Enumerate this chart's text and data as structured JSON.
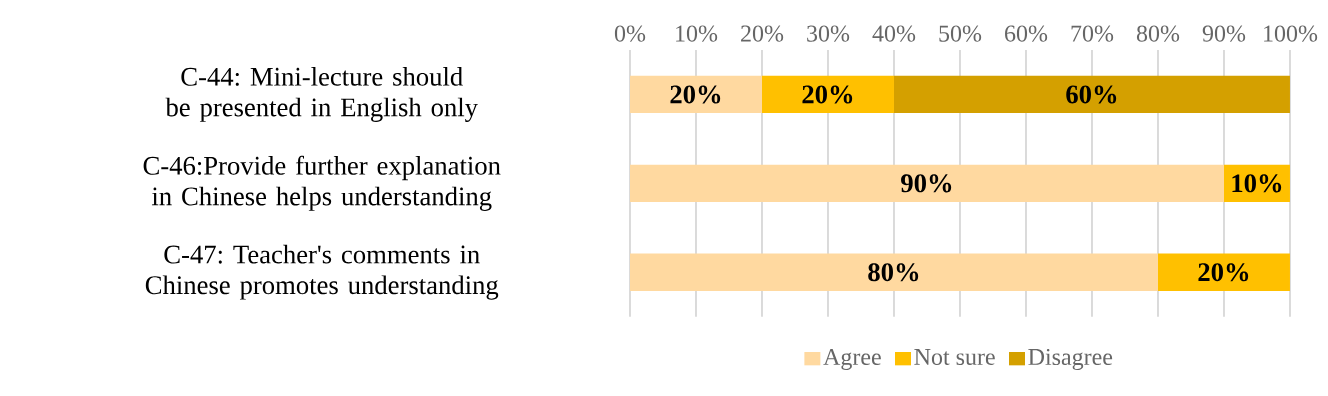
{
  "chart_data": {
    "type": "bar",
    "orientation": "horizontal",
    "stacked": true,
    "categories": [
      "C-44: Mini-lecture should be presented in English only",
      "C-46:Provide further explanation in Chinese helps understanding",
      "C-47: Teacher's comments in Chinese promotes understanding"
    ],
    "series": [
      {
        "name": "Agree",
        "color": "#ffd9a0",
        "values": [
          20,
          90,
          80
        ],
        "value_labels": [
          "20%",
          "90%",
          "80%"
        ]
      },
      {
        "name": "Not sure",
        "color": "#ffc000",
        "values": [
          20,
          10,
          20
        ],
        "value_labels": [
          "20%",
          "10%",
          "20%"
        ]
      },
      {
        "name": "Disagree",
        "color": "#d4a000",
        "values": [
          60,
          0,
          0
        ],
        "value_labels": [
          "60%",
          null,
          null
        ]
      }
    ],
    "xlim": [
      0,
      100
    ],
    "xticks": [
      {
        "value": 0,
        "label": "0%"
      },
      {
        "value": 10,
        "label": "10%"
      },
      {
        "value": 20,
        "label": "20%"
      },
      {
        "value": 30,
        "label": "30%"
      },
      {
        "value": 40,
        "label": "40%"
      },
      {
        "value": 50,
        "label": "50%"
      },
      {
        "value": 60,
        "label": "60%"
      },
      {
        "value": 70,
        "label": "70%"
      },
      {
        "value": 80,
        "label": "80%"
      },
      {
        "value": 90,
        "label": "90%"
      },
      {
        "value": 100,
        "label": "100%"
      }
    ],
    "grid": "x",
    "legend": "bottom"
  }
}
